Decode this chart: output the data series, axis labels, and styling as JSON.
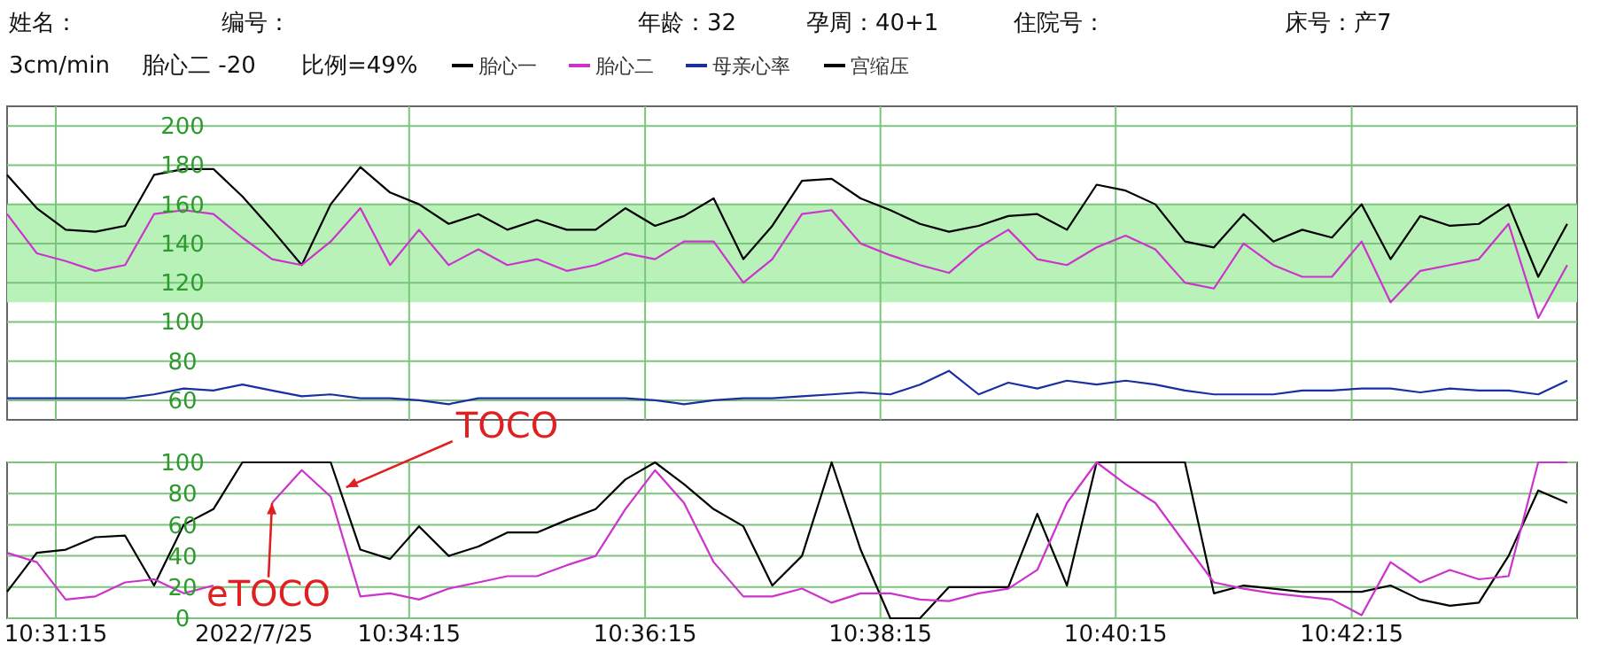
{
  "chart_data": [
    {
      "type": "line",
      "title": null,
      "annotations": [
        "姓名：",
        "编号：",
        "年龄：32",
        "孕周：40+1",
        "住院号：",
        "床号：产7",
        "3cm/min",
        "胎心二 -20",
        "比例=49%"
      ],
      "x": [
        10.5139,
        10.5181,
        10.5222,
        10.5264,
        10.5306,
        10.5347,
        10.5389,
        10.5431,
        10.5472,
        10.5514,
        10.5556,
        10.5597,
        10.5639,
        10.5681,
        10.5722,
        10.5764,
        10.5806,
        10.5847,
        10.5889,
        10.5931,
        10.5972,
        10.6014,
        10.6056,
        10.6097,
        10.6139,
        10.6181,
        10.6222,
        10.6264,
        10.6306,
        10.6347,
        10.6389,
        10.6431,
        10.6472,
        10.6514,
        10.6556,
        10.6597,
        10.6639,
        10.6681,
        10.6722,
        10.6764,
        10.6806,
        10.6847,
        10.6889,
        10.6931,
        10.6972,
        10.7014,
        10.7056,
        10.7097,
        10.7139,
        10.7181,
        10.7222,
        10.7264,
        10.7306,
        10.7347
      ],
      "series": [
        {
          "name": "胎心一",
          "color": "#000000",
          "values": [
            175,
            158,
            147,
            146,
            149,
            175,
            178,
            178,
            164,
            147,
            129,
            160,
            179,
            166,
            160,
            150,
            155,
            147,
            152,
            147,
            147,
            158,
            149,
            154,
            163,
            132,
            149,
            172,
            173,
            163,
            157,
            150,
            146,
            149,
            154,
            155,
            147,
            170,
            167,
            160,
            141,
            138,
            155,
            141,
            147,
            143,
            160,
            132,
            154,
            149,
            150,
            160,
            123,
            150
          ]
        },
        {
          "name": "胎心二",
          "color": "#cc33cc",
          "values": [
            155,
            135,
            131,
            126,
            129,
            155,
            157,
            155,
            143,
            132,
            129,
            141,
            158,
            129,
            147,
            129,
            137,
            129,
            132,
            126,
            129,
            135,
            132,
            141,
            141,
            120,
            132,
            155,
            157,
            140,
            134,
            129,
            125,
            138,
            147,
            132,
            129,
            138,
            144,
            137,
            120,
            117,
            140,
            129,
            123,
            123,
            141,
            110,
            126,
            129,
            132,
            150,
            102,
            129
          ]
        },
        {
          "name": "母亲心率",
          "color": "#1a2fa0",
          "values": [
            61,
            61,
            61,
            61,
            61,
            63,
            66,
            65,
            68,
            65,
            62,
            63,
            61,
            61,
            60,
            58,
            61,
            61,
            61,
            61,
            61,
            61,
            60,
            58,
            60,
            61,
            61,
            62,
            63,
            64,
            63,
            68,
            75,
            63,
            69,
            66,
            70,
            68,
            70,
            68,
            65,
            63,
            63,
            63,
            65,
            65,
            66,
            66,
            64,
            66,
            65,
            65,
            63,
            70
          ]
        }
      ],
      "xlim": [
        10.5139,
        10.7361
      ],
      "xticks": [
        {
          "value": 10.5208,
          "label": null
        },
        {
          "value": 10.5708,
          "label": null
        },
        {
          "value": 10.6042,
          "label": null
        },
        {
          "value": 10.6375,
          "label": null
        },
        {
          "value": 10.6708,
          "label": null
        },
        {
          "value": 10.7042,
          "label": null
        }
      ],
      "ylim": [
        50,
        210
      ],
      "yticks": [
        60,
        80,
        100,
        120,
        140,
        160,
        180,
        200
      ],
      "bands": [
        {
          "axis": "y",
          "from": 110,
          "to": 160,
          "color": "#b8f2b8"
        }
      ],
      "grid": true,
      "legend": "top",
      "tick_labels": "y"
    },
    {
      "type": "line",
      "annotations": [
        "2022/7/25",
        {
          "text": "TOCO",
          "x": 10.5619,
          "y": 84
        },
        {
          "text": "eTOCO",
          "x": 10.5514,
          "y": 74
        }
      ],
      "x": [
        10.5139,
        10.5181,
        10.5222,
        10.5264,
        10.5306,
        10.5347,
        10.5389,
        10.5431,
        10.5472,
        10.5514,
        10.5556,
        10.5597,
        10.5639,
        10.5681,
        10.5722,
        10.5764,
        10.5806,
        10.5847,
        10.5889,
        10.5931,
        10.5972,
        10.6014,
        10.6056,
        10.6097,
        10.6139,
        10.6181,
        10.6222,
        10.6264,
        10.6306,
        10.6347,
        10.6389,
        10.6431,
        10.6472,
        10.6514,
        10.6556,
        10.6597,
        10.6639,
        10.6681,
        10.6722,
        10.6764,
        10.6806,
        10.6847,
        10.6889,
        10.6931,
        10.6972,
        10.7014,
        10.7056,
        10.7097,
        10.7139,
        10.7181,
        10.7222,
        10.7264,
        10.7306,
        10.7347
      ],
      "series": [
        {
          "name": "宫缩压",
          "color": "#000000",
          "values": [
            17,
            42,
            44,
            52,
            53,
            21,
            60,
            70,
            100,
            100,
            100,
            100,
            44,
            38,
            59,
            40,
            46,
            55,
            55,
            63,
            70,
            89,
            100,
            86,
            70,
            59,
            21,
            40,
            100,
            44,
            0,
            0,
            20,
            20,
            20,
            67,
            21,
            100,
            100,
            100,
            100,
            16,
            21,
            19,
            17,
            17,
            17,
            21,
            12,
            8,
            10,
            40,
            82,
            74
          ]
        },
        {
          "color": "#cc33cc",
          "values": [
            42,
            36,
            12,
            14,
            23,
            25,
            16,
            21,
            null,
            74,
            95,
            78,
            14,
            16,
            12,
            19,
            23,
            27,
            27,
            34,
            40,
            70,
            95,
            74,
            36,
            14,
            14,
            19,
            10,
            16,
            16,
            12,
            11,
            16,
            19,
            31,
            74,
            100,
            86,
            74,
            48,
            23,
            19,
            16,
            14,
            12,
            2,
            36,
            23,
            31,
            25,
            27,
            100,
            100
          ]
        }
      ],
      "xlim": [
        10.5139,
        10.7361
      ],
      "xticks": [
        {
          "value": 10.5208,
          "label": "10:31:15"
        },
        {
          "value": 10.5708,
          "label": "10:34:15"
        },
        {
          "value": 10.6042,
          "label": "10:36:15"
        },
        {
          "value": 10.6375,
          "label": "10:38:15"
        },
        {
          "value": 10.6708,
          "label": "10:40:15"
        },
        {
          "value": 10.7042,
          "label": "10:42:15"
        }
      ],
      "ylim": [
        0,
        100
      ],
      "yticks": [
        0,
        20,
        40,
        60,
        80,
        100
      ],
      "grid": true,
      "legend": "top"
    }
  ]
}
